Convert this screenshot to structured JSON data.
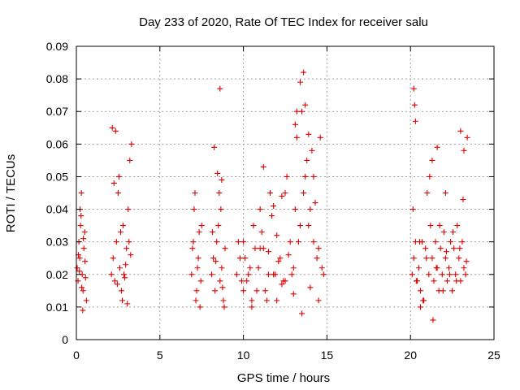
{
  "chart_data": {
    "type": "scatter",
    "title": "Day 233 of 2020, Rate Of TEC Index for receiver salu",
    "xlabel": "GPS time / hours",
    "ylabel": "ROTI / TECUs",
    "xlim": [
      0,
      25
    ],
    "ylim": [
      0,
      0.09
    ],
    "xticks": [
      "0",
      "5",
      "10",
      "15",
      "20",
      "25"
    ],
    "yticks": [
      "0",
      "0.01",
      "0.02",
      "0.03",
      "0.04",
      "0.05",
      "0.06",
      "0.07",
      "0.08",
      "0.09"
    ],
    "xtick_values": [
      0,
      5,
      10,
      15,
      20,
      25
    ],
    "ytick_values": [
      0,
      0.01,
      0.02,
      0.03,
      0.04,
      0.05,
      0.06,
      0.07,
      0.08,
      0.09
    ],
    "grid": true,
    "marker": "plus",
    "marker_color": "#e00000",
    "series": [
      {
        "x": [
          0.05,
          0.1,
          0.15,
          0.2,
          0.25,
          0.3,
          0.35,
          0.4,
          0.45,
          0.5,
          0.55,
          0.6,
          0.12,
          0.22,
          0.32,
          0.42,
          0.52,
          0.18,
          0.28,
          0.38,
          2.1,
          2.2,
          2.3,
          2.4,
          2.5,
          2.6,
          2.7,
          2.8,
          2.9,
          3.0,
          3.1,
          3.2,
          3.3,
          2.15,
          2.35,
          2.55,
          2.75,
          2.95,
          3.15,
          3.25,
          2.25,
          2.45,
          2.65,
          2.85,
          3.05,
          6.9,
          7.0,
          7.1,
          7.2,
          7.3,
          7.4,
          7.5,
          7.05,
          7.25,
          7.45,
          6.95,
          7.15,
          7.35,
          8.1,
          8.2,
          8.3,
          8.4,
          8.5,
          8.6,
          8.7,
          8.8,
          8.9,
          8.25,
          8.45,
          8.65,
          8.85,
          8.15,
          8.35,
          8.55,
          8.75,
          8.6,
          8.7,
          9.6,
          9.8,
          10.0,
          10.2,
          10.4,
          10.6,
          10.8,
          11.0,
          11.2,
          11.4,
          11.6,
          11.8,
          12.0,
          12.2,
          12.4,
          12.6,
          12.8,
          13.0,
          13.2,
          13.4,
          13.6,
          13.8,
          14.0,
          14.2,
          14.4,
          14.6,
          14.8,
          9.7,
          9.9,
          10.1,
          10.3,
          10.5,
          10.7,
          10.9,
          11.1,
          11.3,
          11.5,
          11.7,
          11.9,
          12.1,
          12.3,
          12.5,
          12.7,
          12.9,
          13.1,
          13.3,
          13.5,
          13.7,
          13.9,
          14.1,
          14.3,
          14.5,
          14.7,
          10.0,
          10.5,
          11.0,
          11.5,
          12.0,
          12.5,
          13.0,
          13.5,
          14.0,
          14.5,
          11.2,
          12.3,
          13.4,
          13.6,
          13.7,
          13.1,
          13.2,
          14.2,
          13.9,
          11.8,
          20.1,
          20.2,
          20.3,
          20.4,
          20.5,
          20.6,
          20.7,
          20.8,
          20.9,
          21.0,
          21.1,
          21.2,
          21.3,
          21.4,
          21.5,
          21.6,
          21.7,
          21.8,
          21.9,
          22.0,
          22.1,
          22.2,
          22.3,
          22.4,
          22.5,
          22.6,
          22.7,
          22.8,
          22.9,
          23.0,
          23.1,
          23.2,
          23.3,
          20.15,
          20.35,
          20.55,
          20.75,
          20.95,
          21.15,
          21.35,
          21.55,
          21.75,
          21.95,
          22.15,
          22.35,
          22.55,
          22.75,
          22.95,
          23.15,
          23.35,
          20.2,
          20.25,
          20.3,
          21.6,
          23.0,
          23.2,
          23.4,
          21.3,
          20.6,
          22.1
        ],
        "y": [
          0.022,
          0.018,
          0.03,
          0.025,
          0.035,
          0.045,
          0.02,
          0.015,
          0.028,
          0.033,
          0.019,
          0.012,
          0.026,
          0.04,
          0.016,
          0.031,
          0.024,
          0.021,
          0.038,
          0.009,
          0.02,
          0.025,
          0.018,
          0.03,
          0.045,
          0.022,
          0.015,
          0.035,
          0.019,
          0.028,
          0.04,
          0.055,
          0.06,
          0.065,
          0.064,
          0.05,
          0.012,
          0.023,
          0.03,
          0.026,
          0.048,
          0.017,
          0.033,
          0.02,
          0.011,
          0.02,
          0.03,
          0.045,
          0.015,
          0.025,
          0.01,
          0.035,
          0.04,
          0.022,
          0.018,
          0.028,
          0.012,
          0.033,
          0.02,
          0.025,
          0.015,
          0.03,
          0.035,
          0.018,
          0.022,
          0.012,
          0.028,
          0.059,
          0.051,
          0.04,
          0.01,
          0.033,
          0.024,
          0.045,
          0.016,
          0.077,
          0.049,
          0.02,
          0.025,
          0.03,
          0.018,
          0.022,
          0.035,
          0.015,
          0.04,
          0.028,
          0.012,
          0.045,
          0.02,
          0.032,
          0.025,
          0.018,
          0.05,
          0.03,
          0.022,
          0.062,
          0.035,
          0.045,
          0.055,
          0.04,
          0.03,
          0.025,
          0.062,
          0.02,
          0.03,
          0.018,
          0.025,
          0.02,
          0.012,
          0.028,
          0.022,
          0.033,
          0.015,
          0.027,
          0.038,
          0.02,
          0.024,
          0.017,
          0.045,
          0.026,
          0.02,
          0.04,
          0.03,
          0.07,
          0.05,
          0.035,
          0.058,
          0.042,
          0.028,
          0.022,
          0.015,
          0.01,
          0.028,
          0.02,
          0.012,
          0.018,
          0.014,
          0.008,
          0.016,
          0.012,
          0.053,
          0.044,
          0.079,
          0.082,
          0.072,
          0.066,
          0.07,
          0.05,
          0.063,
          0.041,
          0.02,
          0.025,
          0.03,
          0.018,
          0.022,
          0.015,
          0.03,
          0.012,
          0.028,
          0.045,
          0.02,
          0.035,
          0.025,
          0.018,
          0.03,
          0.022,
          0.015,
          0.028,
          0.02,
          0.033,
          0.025,
          0.018,
          0.022,
          0.03,
          0.015,
          0.028,
          0.02,
          0.035,
          0.025,
          0.018,
          0.03,
          0.022,
          0.02,
          0.04,
          0.018,
          0.03,
          0.012,
          0.025,
          0.05,
          0.006,
          0.022,
          0.035,
          0.015,
          0.027,
          0.02,
          0.033,
          0.018,
          0.028,
          0.043,
          0.024,
          0.077,
          0.072,
          0.067,
          0.059,
          0.064,
          0.058,
          0.062,
          0.055,
          0.01,
          0.045
        ]
      }
    ]
  }
}
